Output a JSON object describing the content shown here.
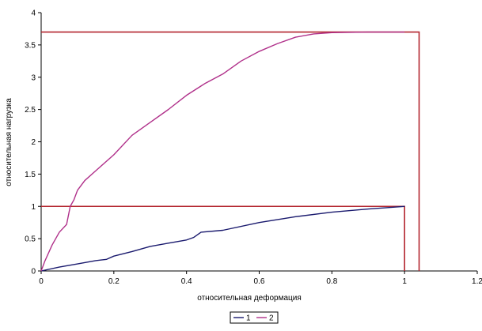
{
  "chart_data": {
    "type": "line",
    "title": "",
    "xlabel": "относительная деформация",
    "ylabel": "относительная нагрузка",
    "xlim": [
      0,
      1.2
    ],
    "ylim": [
      0,
      4
    ],
    "x_ticks": [
      0,
      0.2,
      0.4,
      0.6,
      0.8,
      1,
      1.2
    ],
    "x_tick_labels": [
      "0",
      "0.2",
      "0.4",
      "0.6",
      "0.8",
      "1",
      "1.2"
    ],
    "y_ticks": [
      0,
      0.5,
      1,
      1.5,
      2,
      2.5,
      3,
      3.5,
      4
    ],
    "y_tick_labels": [
      "0",
      "0.5",
      "1",
      "1.5",
      "2",
      "2.5",
      "3",
      "3.5",
      "4"
    ],
    "grid": false,
    "legend_position": "bottom-center",
    "series": [
      {
        "name": "1",
        "color": "#1a1a6e",
        "x": [
          0,
          0.05,
          0.1,
          0.15,
          0.18,
          0.2,
          0.25,
          0.3,
          0.35,
          0.4,
          0.42,
          0.44,
          0.5,
          0.6,
          0.7,
          0.8,
          0.9,
          1.0
        ],
        "y": [
          0,
          0.06,
          0.11,
          0.16,
          0.18,
          0.23,
          0.3,
          0.38,
          0.43,
          0.48,
          0.52,
          0.6,
          0.63,
          0.75,
          0.84,
          0.91,
          0.96,
          1.0
        ]
      },
      {
        "name": "2",
        "color": "#b0308a",
        "x": [
          0,
          0.01,
          0.03,
          0.05,
          0.07,
          0.08,
          0.09,
          0.1,
          0.12,
          0.15,
          0.2,
          0.25,
          0.3,
          0.35,
          0.4,
          0.45,
          0.5,
          0.55,
          0.6,
          0.65,
          0.7,
          0.75,
          0.8,
          0.9,
          1.0
        ],
        "y": [
          0,
          0.15,
          0.4,
          0.6,
          0.72,
          1.0,
          1.1,
          1.25,
          1.4,
          1.55,
          1.8,
          2.1,
          2.3,
          2.5,
          2.72,
          2.9,
          3.05,
          3.25,
          3.4,
          3.52,
          3.62,
          3.67,
          3.69,
          3.7,
          3.7
        ]
      }
    ],
    "reference_lines": [
      {
        "color": "#b3242e",
        "points": [
          [
            0,
            1
          ],
          [
            1,
            1
          ],
          [
            1,
            0
          ]
        ]
      },
      {
        "color": "#b3242e",
        "points": [
          [
            0,
            3.7
          ],
          [
            1.04,
            3.7
          ],
          [
            1.04,
            0
          ]
        ]
      }
    ]
  },
  "legend": {
    "items": [
      {
        "label": "1",
        "color": "#1a1a6e"
      },
      {
        "label": "2",
        "color": "#b0308a"
      }
    ]
  }
}
